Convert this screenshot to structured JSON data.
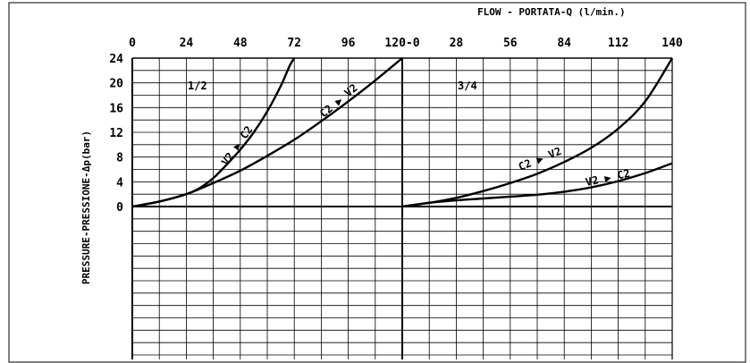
{
  "chart_data": [
    {
      "type": "line",
      "panel_label": "1/2",
      "x_ticks": [
        "0",
        "24",
        "48",
        "72",
        "96",
        "120"
      ],
      "xlim": [
        0,
        120
      ],
      "y_ticks": [
        "0",
        "4",
        "8",
        "12",
        "16",
        "20",
        "24"
      ],
      "ylim": [
        0,
        24
      ],
      "series": [
        {
          "name": "V2 ▶ C2",
          "x": [
            0,
            12,
            24,
            30,
            36,
            42,
            48,
            54,
            60,
            66,
            70,
            72
          ],
          "y": [
            0,
            0.8,
            2.0,
            3.0,
            4.6,
            6.8,
            9.2,
            12.0,
            15.4,
            19.5,
            22.8,
            24
          ]
        },
        {
          "name": "C2 ▶ V2",
          "x": [
            0,
            12,
            24,
            36,
            48,
            60,
            72,
            84,
            96,
            108,
            120
          ],
          "y": [
            0,
            0.8,
            2.0,
            3.8,
            5.8,
            8.2,
            10.8,
            13.8,
            17.0,
            20.4,
            24
          ]
        }
      ]
    },
    {
      "type": "line",
      "panel_label": "3/4",
      "x_ticks": [
        "0",
        "28",
        "56",
        "84",
        "112",
        "140"
      ],
      "xlim": [
        0,
        140
      ],
      "y_ticks": [
        "0",
        "4",
        "8",
        "12",
        "16",
        "20",
        "24"
      ],
      "ylim": [
        0,
        24
      ],
      "series": [
        {
          "name": "C2 ▶ V2",
          "x": [
            0,
            14,
            28,
            42,
            56,
            70,
            84,
            98,
            112,
            126,
            140
          ],
          "y": [
            0,
            0.6,
            1.4,
            2.5,
            3.8,
            5.3,
            7.2,
            9.5,
            12.6,
            17.0,
            24
          ]
        },
        {
          "name": "V2 ▶ C2",
          "x": [
            0,
            14,
            28,
            42,
            56,
            70,
            84,
            98,
            112,
            126,
            140
          ],
          "y": [
            0,
            0.6,
            1.0,
            1.3,
            1.6,
            1.9,
            2.4,
            3.1,
            4.1,
            5.4,
            7.0
          ]
        }
      ]
    }
  ],
  "xlabel": "FLOW  - PORTATA-Q (l/min.)",
  "ylabel": "PRESSURE-PRESSIONE-Δp(bar)",
  "left_last_tick": "120-0"
}
